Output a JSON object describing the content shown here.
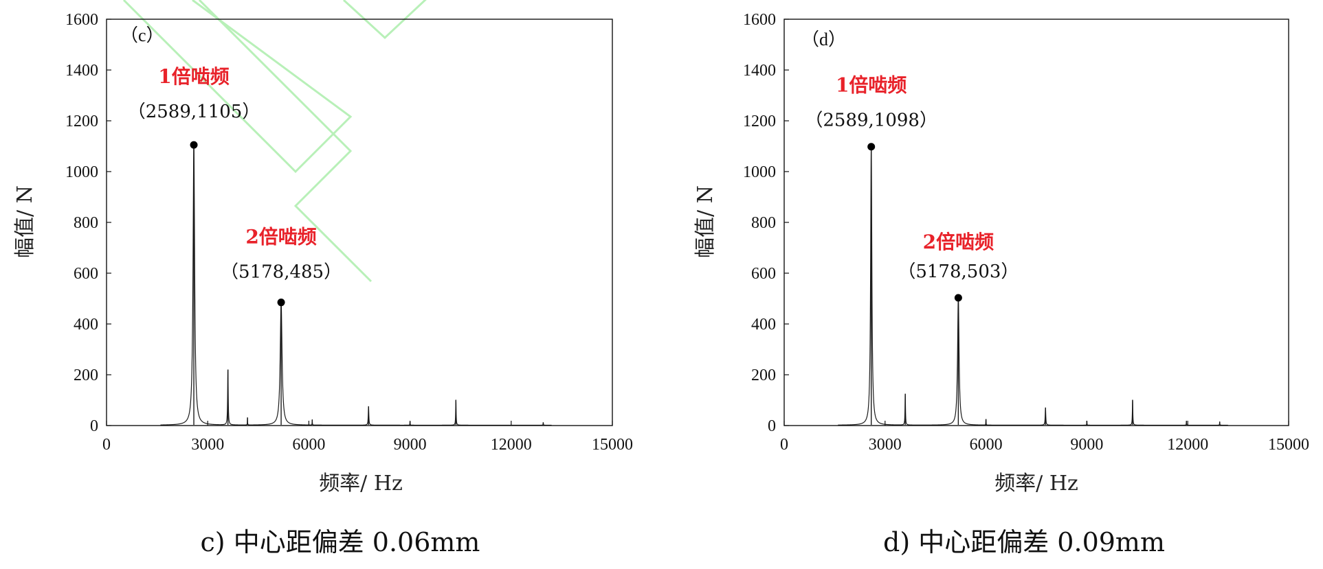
{
  "colors": {
    "line": "#1a1a1a",
    "highlight": "#e8222a",
    "watermark": "#b8f0b8"
  },
  "chart_data": [
    {
      "type": "line",
      "panel_label": "（c）",
      "caption": "c)  中心距偏差 0.06mm",
      "xlabel": "频率/ Hz",
      "ylabel": "幅值/ N",
      "xlim": [
        0,
        15000
      ],
      "ylim": [
        0,
        1600
      ],
      "xticks": [
        0,
        3000,
        6000,
        9000,
        12000,
        15000
      ],
      "yticks": [
        0,
        200,
        400,
        600,
        800,
        1000,
        1200,
        1400,
        1600
      ],
      "grid": false,
      "baseline_range": [
        1600,
        13200
      ],
      "peaks": [
        {
          "x": 2589,
          "y": 1105,
          "width": 70
        },
        {
          "x": 3600,
          "y": 220,
          "width": 25
        },
        {
          "x": 4180,
          "y": 30,
          "width": 10
        },
        {
          "x": 5178,
          "y": 485,
          "width": 80
        },
        {
          "x": 6100,
          "y": 22,
          "width": 10
        },
        {
          "x": 7770,
          "y": 75,
          "width": 25
        },
        {
          "x": 9000,
          "y": 15,
          "width": 10
        },
        {
          "x": 10360,
          "y": 100,
          "width": 20
        },
        {
          "x": 12950,
          "y": 12,
          "width": 10
        }
      ],
      "annotations": [
        {
          "title": "1倍啮频",
          "coord": "（2589,1105）",
          "x": 2589,
          "y": 1105
        },
        {
          "title": "2倍啮频",
          "coord": "（5178,485）",
          "x": 5178,
          "y": 485
        }
      ]
    },
    {
      "type": "line",
      "panel_label": "（d）",
      "caption": "d)  中心距偏差 0.09mm",
      "xlabel": "频率/ Hz",
      "ylabel": "幅值/ N",
      "xlim": [
        0,
        15000
      ],
      "ylim": [
        0,
        1600
      ],
      "xticks": [
        0,
        3000,
        6000,
        9000,
        12000,
        15000
      ],
      "yticks": [
        0,
        200,
        400,
        600,
        800,
        1000,
        1200,
        1400,
        1600
      ],
      "grid": false,
      "baseline_range": [
        1600,
        13200
      ],
      "peaks": [
        {
          "x": 2589,
          "y": 1098,
          "width": 55
        },
        {
          "x": 3600,
          "y": 125,
          "width": 20
        },
        {
          "x": 5178,
          "y": 503,
          "width": 65
        },
        {
          "x": 6000,
          "y": 25,
          "width": 10
        },
        {
          "x": 7770,
          "y": 70,
          "width": 25
        },
        {
          "x": 9000,
          "y": 18,
          "width": 10
        },
        {
          "x": 10360,
          "y": 100,
          "width": 20
        },
        {
          "x": 11960,
          "y": 18,
          "width": 10
        },
        {
          "x": 12950,
          "y": 15,
          "width": 10
        }
      ],
      "annotations": [
        {
          "title": "1倍啮频",
          "coord": "（2589,1098）",
          "x": 2589,
          "y": 1098
        },
        {
          "title": "2倍啮频",
          "coord": "（5178,503）",
          "x": 5178,
          "y": 503
        }
      ]
    }
  ]
}
